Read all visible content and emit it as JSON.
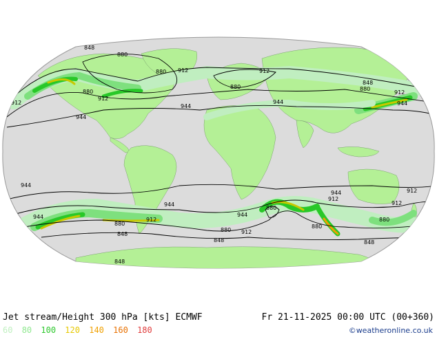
{
  "map": {
    "contour_labels": [
      {
        "text": "848"
      },
      {
        "text": "880"
      },
      {
        "text": "880"
      },
      {
        "text": "912"
      },
      {
        "text": "912"
      },
      {
        "text": "880"
      },
      {
        "text": "848"
      },
      {
        "text": "880"
      },
      {
        "text": "912"
      },
      {
        "text": "912"
      },
      {
        "text": "944"
      },
      {
        "text": "944"
      },
      {
        "text": "944"
      },
      {
        "text": "880"
      },
      {
        "text": "912"
      },
      {
        "text": "944"
      },
      {
        "text": "944"
      },
      {
        "text": "944"
      },
      {
        "text": "944"
      },
      {
        "text": "912"
      },
      {
        "text": "880"
      },
      {
        "text": "912"
      },
      {
        "text": "848"
      },
      {
        "text": "944"
      },
      {
        "text": "880"
      },
      {
        "text": "912"
      },
      {
        "text": "944"
      },
      {
        "text": "912"
      },
      {
        "text": "880"
      },
      {
        "text": "880"
      },
      {
        "text": "880"
      },
      {
        "text": "848"
      },
      {
        "text": "848"
      },
      {
        "text": "848"
      },
      {
        "text": "912"
      }
    ],
    "colors": {
      "ocean": "#dcdcdc",
      "land": "#b4f096",
      "jet_60": "#c0eec0",
      "jet_80": "#7ee07e",
      "jet_100": "#28c828",
      "jet_120": "#c8c800",
      "jet_140": "#f0a000"
    }
  },
  "footer": {
    "title": "Jet stream/Height 300 hPa [kts] ECMWF",
    "datetime": "Fr 21-11-2025 00:00 UTC (00+360)",
    "credit": "©weatheronline.co.uk",
    "legend": [
      {
        "label": "60",
        "color": "#c0f0c0"
      },
      {
        "label": "80",
        "color": "#90e890"
      },
      {
        "label": "100",
        "color": "#2ec82e"
      },
      {
        "label": "120",
        "color": "#e6c800"
      },
      {
        "label": "140",
        "color": "#f0a000"
      },
      {
        "label": "160",
        "color": "#e87000"
      },
      {
        "label": "180",
        "color": "#e03c3c"
      }
    ]
  }
}
